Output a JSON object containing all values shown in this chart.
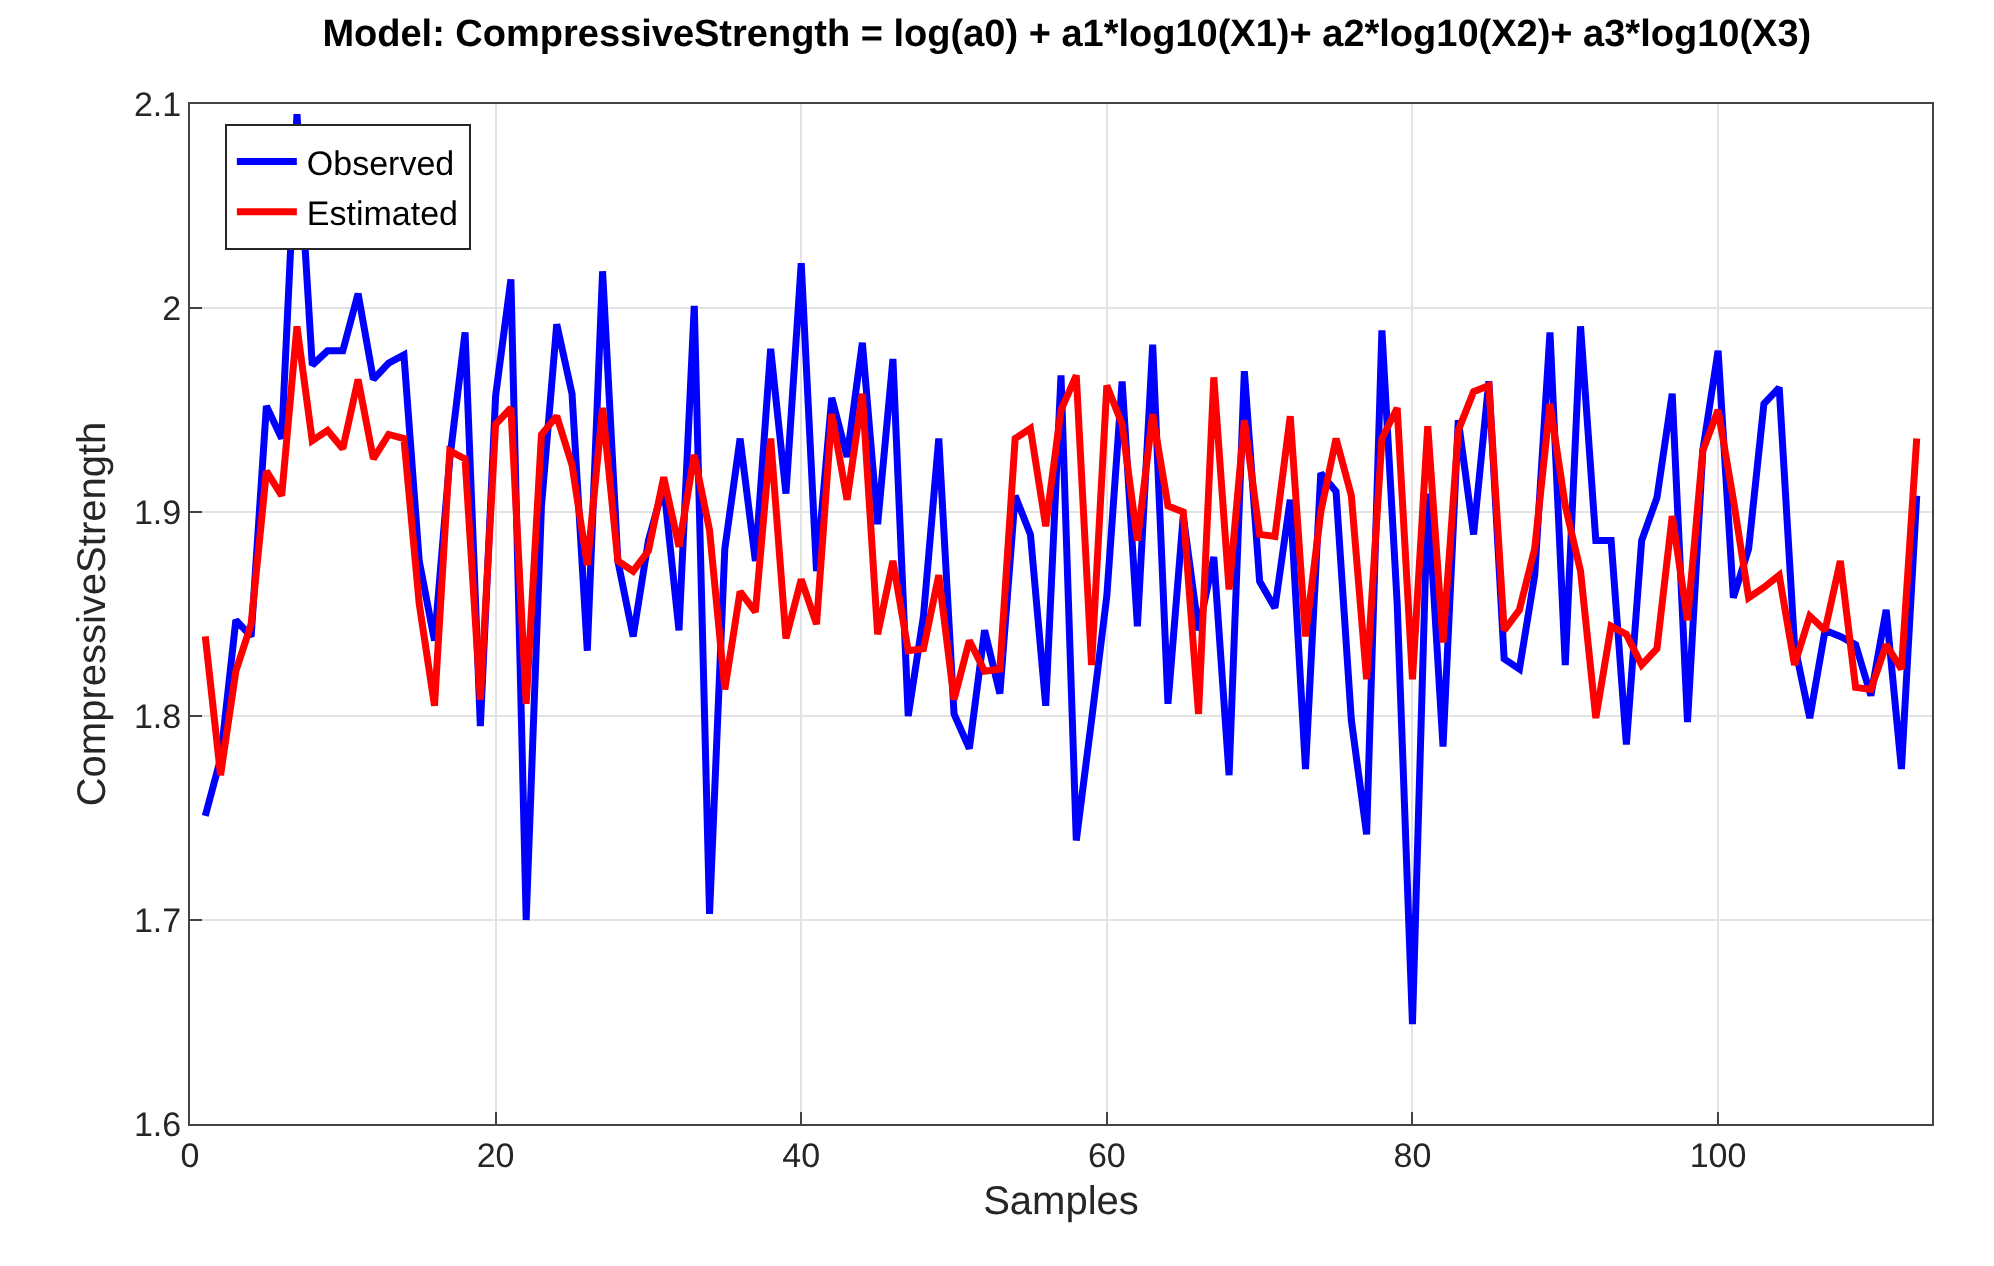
{
  "chart_data": {
    "type": "line",
    "title": "Model: CompressiveStrength = log(a0) + a1*log10(X1)+ a2*log10(X2)+ a3*log10(X3)",
    "xlabel": "Samples",
    "ylabel": "CompressiveStrength",
    "x": [
      1,
      2,
      3,
      4,
      5,
      6,
      7,
      8,
      9,
      10,
      11,
      12,
      13,
      14,
      15,
      16,
      17,
      18,
      19,
      20,
      21,
      22,
      23,
      24,
      25,
      26,
      27,
      28,
      29,
      30,
      31,
      32,
      33,
      34,
      35,
      36,
      37,
      38,
      39,
      40,
      41,
      42,
      43,
      44,
      45,
      46,
      47,
      48,
      49,
      50,
      51,
      52,
      53,
      54,
      55,
      56,
      57,
      58,
      59,
      60,
      61,
      62,
      63,
      64,
      65,
      66,
      67,
      68,
      69,
      70,
      71,
      72,
      73,
      74,
      75,
      76,
      77,
      78,
      79,
      80,
      81,
      82,
      83,
      84,
      85,
      86,
      87,
      88,
      89,
      90,
      91,
      92,
      93,
      94,
      95,
      96,
      97,
      98,
      99,
      100,
      101,
      102,
      103,
      104,
      105,
      106,
      107,
      108,
      109,
      110,
      111,
      112,
      113
    ],
    "series": [
      {
        "name": "Observed",
        "color": "#0000ff",
        "values": [
          1.751,
          1.779,
          1.847,
          1.839,
          1.952,
          1.936,
          2.095,
          1.972,
          1.979,
          1.979,
          2.007,
          1.965,
          1.973,
          1.977,
          1.876,
          1.837,
          1.926,
          1.988,
          1.795,
          1.957,
          2.014,
          1.7,
          1.903,
          1.992,
          1.958,
          1.832,
          2.018,
          1.876,
          1.839,
          1.886,
          1.913,
          1.842,
          2.001,
          1.703,
          1.882,
          1.936,
          1.876,
          1.98,
          1.909,
          2.022,
          1.871,
          1.956,
          1.927,
          1.983,
          1.894,
          1.975,
          1.8,
          1.849,
          1.936,
          1.801,
          1.784,
          1.842,
          1.811,
          1.908,
          1.889,
          1.805,
          1.967,
          1.739,
          1.798,
          1.859,
          1.964,
          1.844,
          1.982,
          1.806,
          1.898,
          1.842,
          1.878,
          1.771,
          1.969,
          1.866,
          1.853,
          1.906,
          1.774,
          1.919,
          1.91,
          1.798,
          1.742,
          1.989,
          1.855,
          1.649,
          1.909,
          1.785,
          1.945,
          1.889,
          1.964,
          1.828,
          1.823,
          1.869,
          1.988,
          1.825,
          1.991,
          1.886,
          1.886,
          1.786,
          1.886,
          1.907,
          1.958,
          1.797,
          1.93,
          1.979,
          1.858,
          1.882,
          1.953,
          1.961,
          1.835,
          1.799,
          1.842,
          1.839,
          1.835,
          1.81,
          1.852,
          1.774,
          1.908
        ]
      },
      {
        "name": "Estimated",
        "color": "#ff0000",
        "values": [
          1.839,
          1.771,
          1.822,
          1.845,
          1.92,
          1.908,
          1.991,
          1.935,
          1.94,
          1.931,
          1.965,
          1.926,
          1.938,
          1.936,
          1.855,
          1.805,
          1.93,
          1.926,
          1.808,
          1.943,
          1.951,
          1.806,
          1.938,
          1.947,
          1.923,
          1.874,
          1.951,
          1.876,
          1.871,
          1.881,
          1.917,
          1.883,
          1.928,
          1.891,
          1.813,
          1.861,
          1.851,
          1.936,
          1.838,
          1.867,
          1.845,
          1.948,
          1.906,
          1.958,
          1.84,
          1.876,
          1.832,
          1.833,
          1.869,
          1.808,
          1.837,
          1.822,
          1.823,
          1.936,
          1.941,
          1.893,
          1.95,
          1.967,
          1.825,
          1.962,
          1.943,
          1.886,
          1.948,
          1.903,
          1.9,
          1.801,
          1.966,
          1.862,
          1.945,
          1.889,
          1.888,
          1.947,
          1.839,
          1.9,
          1.936,
          1.908,
          1.818,
          1.936,
          1.951,
          1.818,
          1.942,
          1.836,
          1.94,
          1.959,
          1.962,
          1.842,
          1.852,
          1.882,
          1.953,
          1.903,
          1.871,
          1.799,
          1.844,
          1.84,
          1.825,
          1.833,
          1.898,
          1.847,
          1.93,
          1.95,
          1.906,
          1.858,
          1.863,
          1.869,
          1.825,
          1.849,
          1.842,
          1.876,
          1.814,
          1.813,
          1.835,
          1.823,
          1.936
        ]
      }
    ],
    "xlim": [
      0,
      114
    ],
    "xticks": [
      0,
      20,
      40,
      60,
      80,
      100
    ],
    "ylim": [
      1.6,
      2.1
    ],
    "yticks": [
      1.6,
      1.7,
      1.8,
      1.9,
      2,
      2.1
    ],
    "grid": true,
    "legend": "top left",
    "line_style": "solid",
    "marker": "none"
  }
}
